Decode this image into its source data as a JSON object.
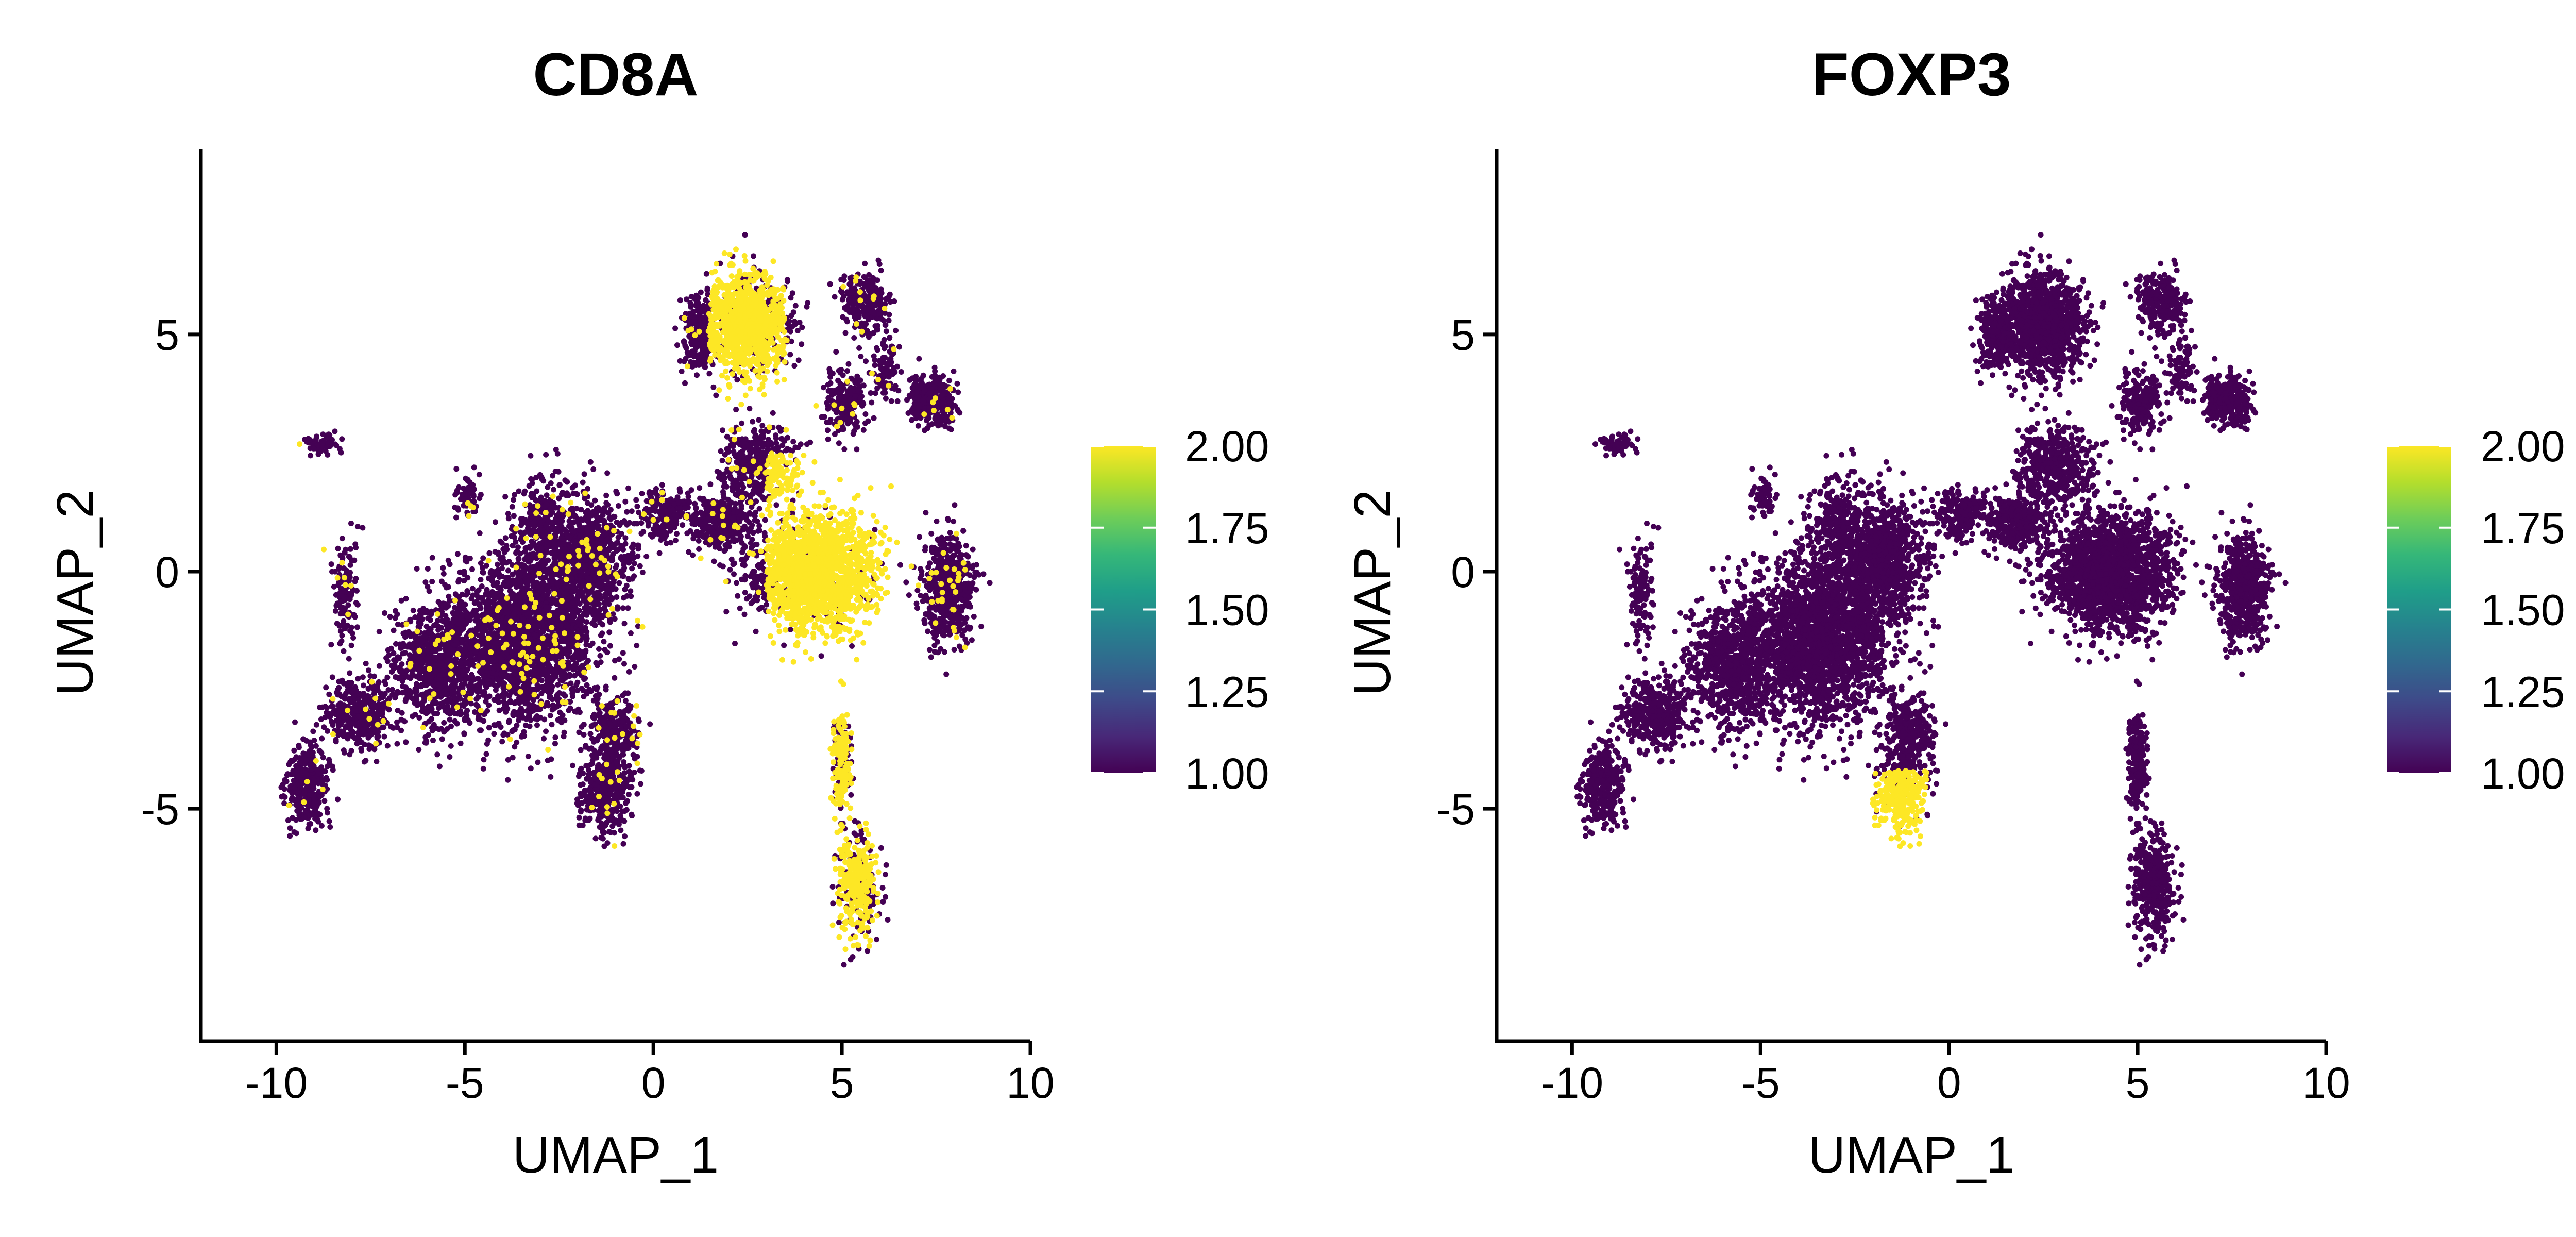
{
  "colors": {
    "low": "#440154",
    "high": "#FDE725",
    "viridis": [
      "#440154",
      "#482878",
      "#3E4A89",
      "#31688E",
      "#26828E",
      "#1F9E89",
      "#35B779",
      "#6DCD59",
      "#B4DE2C",
      "#FDE725"
    ]
  },
  "chart_data": [
    {
      "type": "scatter",
      "title": "CD8A",
      "xlabel": "UMAP_1",
      "ylabel": "UMAP_2",
      "xlim": [
        -12,
        10
      ],
      "ylim": [
        -9.9,
        8.9
      ],
      "xticks": [
        -10,
        -5,
        0,
        5,
        10
      ],
      "xtick_labels": [
        "-10",
        "-5",
        "0",
        "5",
        "10"
      ],
      "yticks": [
        -5,
        0,
        5
      ],
      "ytick_labels": [
        "-5",
        "0",
        "5"
      ],
      "grid": false,
      "color_scale": {
        "name": "viridis",
        "min": 1.0,
        "max": 2.0,
        "tick_labels": [
          "2.00",
          "1.75",
          "1.50",
          "1.25",
          "1.00"
        ],
        "position": "right"
      },
      "expression_high_regions": [
        {
          "x": [
            1.5,
            3.5
          ],
          "y": [
            3.5,
            6.8
          ],
          "fraction_high": 0.85
        },
        {
          "x": [
            3.0,
            6.5
          ],
          "y": [
            -2.5,
            2.5
          ],
          "fraction_high": 0.9
        },
        {
          "x": [
            4.6,
            6.0
          ],
          "y": [
            -8.0,
            -3.0
          ],
          "fraction_high": 0.7
        }
      ]
    },
    {
      "type": "scatter",
      "title": "FOXP3",
      "xlabel": "UMAP_1",
      "ylabel": "UMAP_2",
      "xlim": [
        -12,
        10
      ],
      "ylim": [
        -9.9,
        8.9
      ],
      "xticks": [
        -10,
        -5,
        0,
        5,
        10
      ],
      "xtick_labels": [
        "-10",
        "-5",
        "0",
        "5",
        "10"
      ],
      "yticks": [
        -5,
        0,
        5
      ],
      "ytick_labels": [
        "-5",
        "0",
        "5"
      ],
      "grid": false,
      "color_scale": {
        "name": "viridis",
        "min": 1.0,
        "max": 2.0,
        "tick_labels": [
          "2.00",
          "1.75",
          "1.50",
          "1.25",
          "1.00"
        ],
        "position": "right"
      },
      "expression_high_regions": [
        {
          "x": [
            -2.2,
            -0.6
          ],
          "y": [
            -6.0,
            -4.2
          ],
          "fraction_high": 0.9
        }
      ]
    }
  ]
}
